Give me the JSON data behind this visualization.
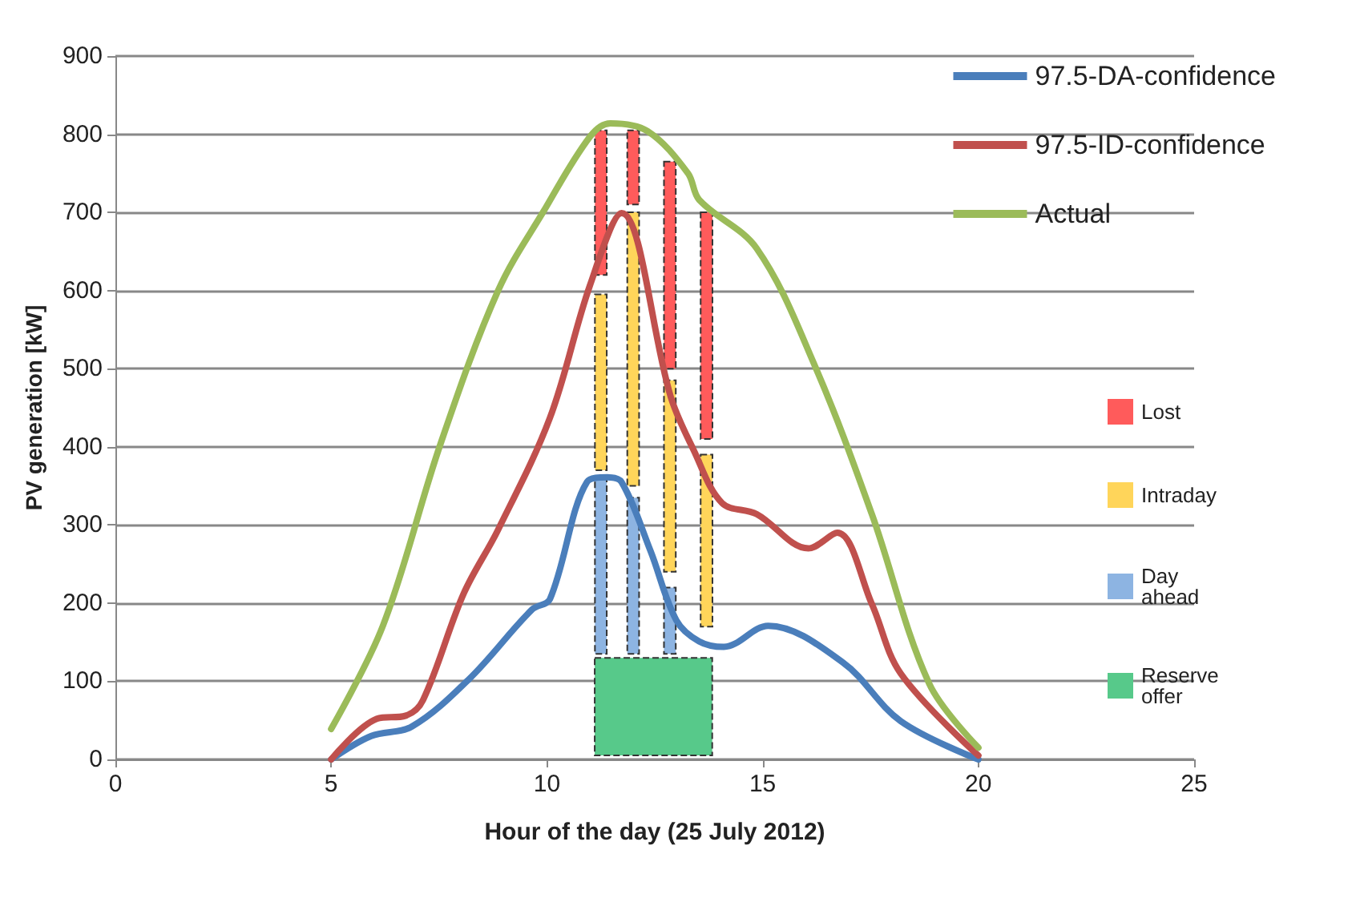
{
  "chart_data": {
    "type": "line",
    "xlabel": "Hour of the day (25 July 2012)",
    "ylabel": "PV generation [kW]",
    "xlim": [
      0,
      25
    ],
    "xticks": [
      0,
      5,
      10,
      15,
      20,
      25
    ],
    "ylim": [
      0,
      900
    ],
    "yticks": [
      0,
      100,
      200,
      300,
      400,
      500,
      600,
      700,
      800,
      900
    ],
    "grid": "y",
    "legend": "right",
    "marker": "none",
    "line_style": "solid",
    "series": [
      {
        "name": "Lost",
        "type": "bar",
        "color": "#ff5b5b",
        "x": [
          11.25,
          12.0,
          12.85,
          13.7
        ],
        "base": [
          620,
          710,
          500,
          410
        ],
        "values": [
          185,
          95,
          265,
          290
        ]
      },
      {
        "name": "Intraday",
        "type": "bar",
        "color": "#ffd55a",
        "x": [
          11.25,
          12.0,
          12.85,
          13.7
        ],
        "base": [
          370,
          350,
          240,
          170
        ],
        "values": [
          225,
          350,
          245,
          220
        ]
      },
      {
        "name": "Day ahead",
        "type": "bar",
        "color": "#8db4e2",
        "x": [
          11.25,
          12.0,
          12.85
        ],
        "base": [
          135,
          135,
          135
        ],
        "values": [
          225,
          200,
          85
        ]
      },
      {
        "name": "Reserve offer",
        "type": "bar",
        "color": "#57c98a",
        "x": [
          12.47
        ],
        "base": [
          5
        ],
        "values": [
          125
        ]
      },
      {
        "name": "97.5-DA-confidence",
        "color": "#4a7ebb",
        "x": [
          5,
          5.93,
          6.87,
          8.2,
          9.66,
          10.07,
          10.93,
          11.4,
          11.73,
          12.4,
          13,
          13.53,
          14.1,
          15.13,
          16.86,
          18.2,
          20
        ],
        "values": [
          0,
          30,
          42,
          103,
          192,
          205,
          355,
          361,
          355,
          267,
          178,
          151,
          144,
          171,
          124,
          49,
          0
        ]
      },
      {
        "name": "97.5-ID-confidence",
        "color": "#c0504d",
        "x": [
          5,
          6.06,
          6.73,
          7.13,
          8.07,
          8.87,
          10.07,
          11,
          11.73,
          12.87,
          13.4,
          14.06,
          14.86,
          16.06,
          16.73,
          17.53,
          18.2,
          20
        ],
        "values": [
          0,
          52,
          56,
          76,
          212,
          294,
          437,
          607,
          699,
          464,
          396,
          328,
          314,
          270,
          290,
          199,
          110,
          5
        ]
      },
      {
        "name": "Actual",
        "color": "#9bbb59",
        "x": [
          5,
          6.2,
          7.53,
          8.87,
          9.93,
          11,
          11.47,
          12.33,
          13.27,
          13.53,
          14.86,
          16.2,
          17.53,
          18.86,
          20
        ],
        "values": [
          39,
          171,
          403,
          600,
          702,
          797,
          814,
          804,
          750,
          716,
          654,
          505,
          314,
          97,
          15
        ]
      }
    ]
  }
}
